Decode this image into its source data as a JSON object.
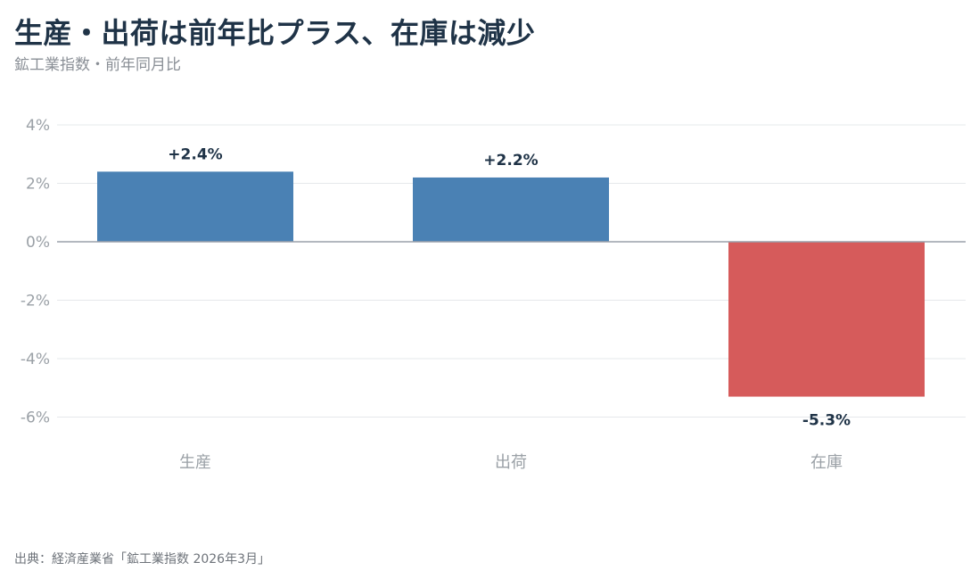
{
  "header": {
    "title": "生産・出荷は前年比プラス、在庫は減少",
    "subtitle": "鉱工業指数・前年同月比"
  },
  "footer": {
    "source": "出典：経済産業省「鉱工業指数 2026年3月」"
  },
  "colors": {
    "positive": "#4a81b4",
    "negative": "#d65b5b",
    "grid": "#e6e8eb",
    "zero_line": "#9aa0aa"
  },
  "chart_data": {
    "type": "bar",
    "categories": [
      "生産",
      "出荷",
      "在庫"
    ],
    "values": [
      2.4,
      2.2,
      -5.3
    ],
    "data_labels": [
      "+2.4%",
      "+2.2%",
      "-5.3%"
    ],
    "ylim": [
      -7,
      4
    ],
    "yticks": [
      4,
      2,
      0,
      -2,
      -4,
      -6
    ],
    "ytick_labels": [
      "4%",
      "2%",
      "0%",
      "-2%",
      "-4%",
      "-6%"
    ],
    "grid": true,
    "legend": "none"
  }
}
